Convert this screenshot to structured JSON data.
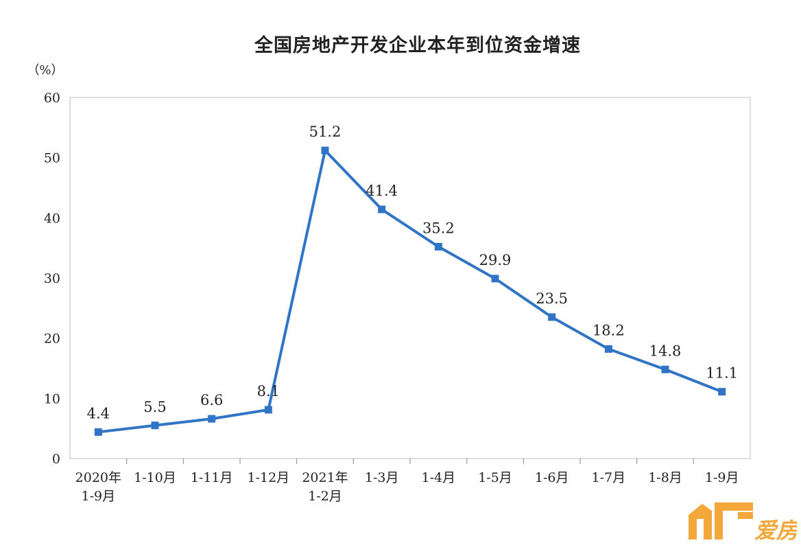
{
  "chart_data": {
    "type": "line",
    "title": "全国房地产开发企业本年到位资金增速",
    "ylabel": "（%）",
    "xlabel": "",
    "ylim": [
      0,
      60
    ],
    "yticks": [
      0,
      10,
      20,
      30,
      40,
      50,
      60
    ],
    "categories": [
      [
        "2020年",
        "1-9月"
      ],
      [
        "1-10月"
      ],
      [
        "1-11月"
      ],
      [
        "1-12月"
      ],
      [
        "2021年",
        "1-2月"
      ],
      [
        "1-3月"
      ],
      [
        "1-4月"
      ],
      [
        "1-5月"
      ],
      [
        "1-6月"
      ],
      [
        "1-7月"
      ],
      [
        "1-8月"
      ],
      [
        "1-9月"
      ]
    ],
    "series": [
      {
        "values": [
          4.4,
          5.5,
          6.6,
          8.1,
          51.2,
          41.4,
          35.2,
          29.9,
          23.5,
          18.2,
          14.8,
          11.1
        ],
        "labels": [
          "4.4",
          "5.5",
          "6.6",
          "8.1",
          "51.2",
          "41.4",
          "35.2",
          "29.9",
          "23.5",
          "18.2",
          "14.8",
          "11.1"
        ],
        "color": "#2f74c5"
      }
    ],
    "grid": false,
    "legend": "none"
  },
  "watermark": {
    "text": "爱房",
    "color": "#f4a73a",
    "icon": "house-logo-icon"
  }
}
